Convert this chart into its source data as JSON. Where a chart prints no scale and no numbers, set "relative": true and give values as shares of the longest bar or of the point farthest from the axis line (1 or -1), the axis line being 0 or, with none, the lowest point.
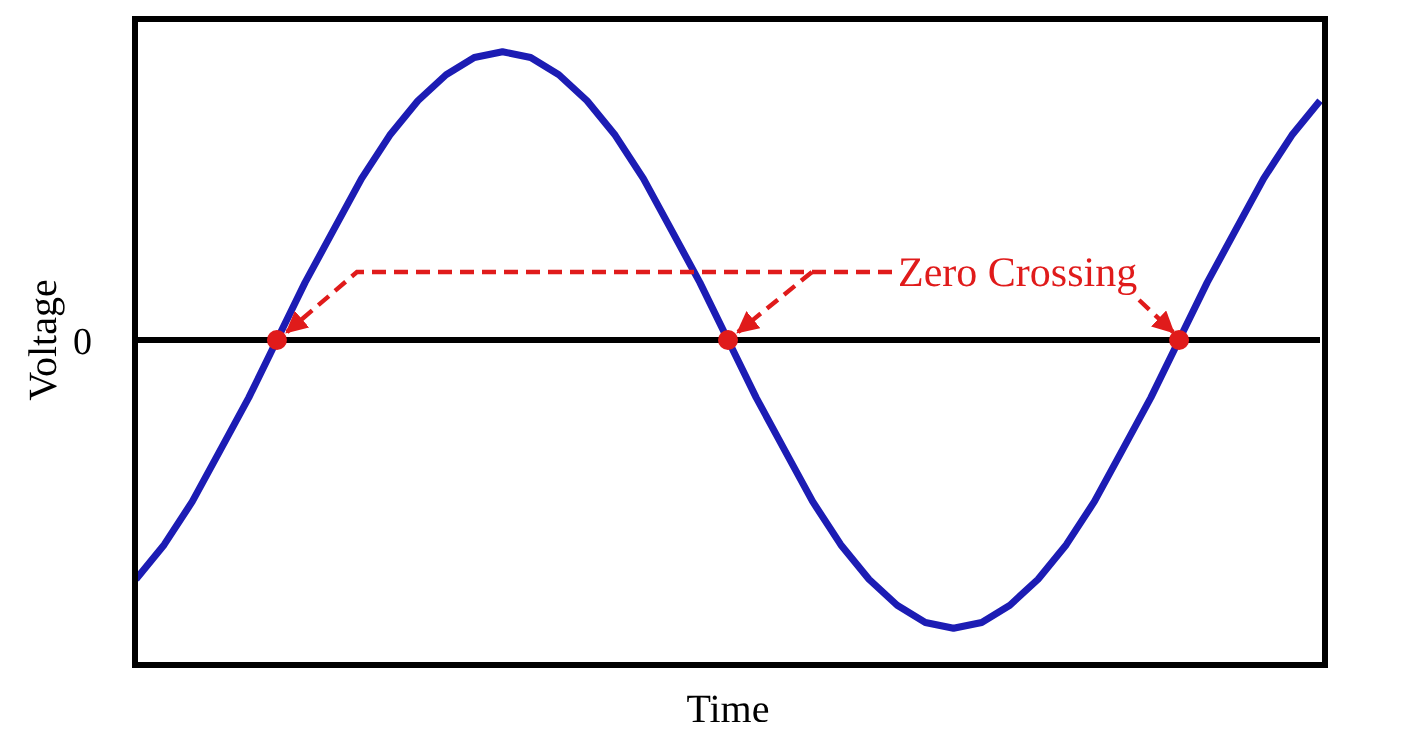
{
  "chart_data": {
    "type": "line",
    "relative": true,
    "xlabel": "Time",
    "ylabel": "Voltage",
    "categories": [
      null,
      null,
      null,
      null,
      null,
      null,
      null,
      null,
      null,
      null,
      null,
      null,
      null,
      null,
      null,
      null,
      null,
      null,
      null,
      null,
      null,
      null,
      null,
      null,
      null,
      null,
      null,
      null,
      null,
      null,
      null,
      null,
      null,
      null,
      null,
      null,
      null,
      null,
      null,
      null,
      null,
      null,
      null
    ],
    "series": [
      {
        "color": "#1c1cb4",
        "values": [
          -0.83,
          -0.71,
          -0.56,
          -0.38,
          -0.2,
          0,
          0.2,
          0.38,
          0.56,
          0.71,
          0.83,
          0.92,
          0.98,
          1,
          0.98,
          0.92,
          0.83,
          0.71,
          0.56,
          0.38,
          0.2,
          0,
          -0.2,
          -0.38,
          -0.56,
          -0.71,
          -0.83,
          -0.92,
          -0.98,
          -1,
          -0.98,
          -0.92,
          -0.83,
          -0.71,
          -0.56,
          -0.38,
          -0.2,
          0,
          0.2,
          0.38,
          0.56,
          0.71,
          0.83
        ]
      }
    ],
    "annotations": [
      "0",
      "Zero Crossing"
    ]
  }
}
